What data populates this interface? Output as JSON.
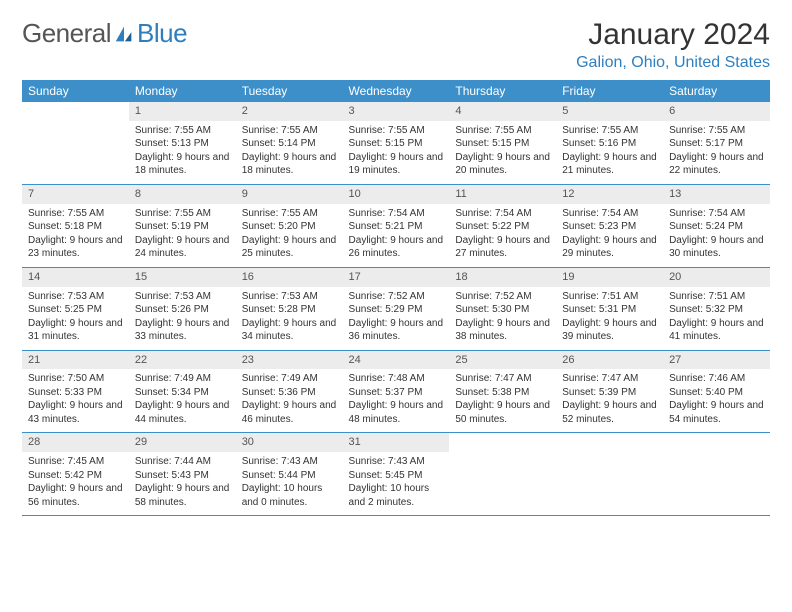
{
  "brand": {
    "text1": "General",
    "text2": "Blue"
  },
  "title": "January 2024",
  "location": "Galion, Ohio, United States",
  "colors": {
    "header_bg": "#3d8fc9",
    "header_text": "#ffffff",
    "accent": "#2f7fbf",
    "daynum_bg": "#ececec",
    "border": "#3d8fc9",
    "body_text": "#333333",
    "page_bg": "#ffffff"
  },
  "day_names": [
    "Sunday",
    "Monday",
    "Tuesday",
    "Wednesday",
    "Thursday",
    "Friday",
    "Saturday"
  ],
  "weeks": [
    [
      {
        "n": "",
        "sr": "",
        "ss": "",
        "dl": ""
      },
      {
        "n": "1",
        "sr": "Sunrise: 7:55 AM",
        "ss": "Sunset: 5:13 PM",
        "dl": "Daylight: 9 hours and 18 minutes."
      },
      {
        "n": "2",
        "sr": "Sunrise: 7:55 AM",
        "ss": "Sunset: 5:14 PM",
        "dl": "Daylight: 9 hours and 18 minutes."
      },
      {
        "n": "3",
        "sr": "Sunrise: 7:55 AM",
        "ss": "Sunset: 5:15 PM",
        "dl": "Daylight: 9 hours and 19 minutes."
      },
      {
        "n": "4",
        "sr": "Sunrise: 7:55 AM",
        "ss": "Sunset: 5:15 PM",
        "dl": "Daylight: 9 hours and 20 minutes."
      },
      {
        "n": "5",
        "sr": "Sunrise: 7:55 AM",
        "ss": "Sunset: 5:16 PM",
        "dl": "Daylight: 9 hours and 21 minutes."
      },
      {
        "n": "6",
        "sr": "Sunrise: 7:55 AM",
        "ss": "Sunset: 5:17 PM",
        "dl": "Daylight: 9 hours and 22 minutes."
      }
    ],
    [
      {
        "n": "7",
        "sr": "Sunrise: 7:55 AM",
        "ss": "Sunset: 5:18 PM",
        "dl": "Daylight: 9 hours and 23 minutes."
      },
      {
        "n": "8",
        "sr": "Sunrise: 7:55 AM",
        "ss": "Sunset: 5:19 PM",
        "dl": "Daylight: 9 hours and 24 minutes."
      },
      {
        "n": "9",
        "sr": "Sunrise: 7:55 AM",
        "ss": "Sunset: 5:20 PM",
        "dl": "Daylight: 9 hours and 25 minutes."
      },
      {
        "n": "10",
        "sr": "Sunrise: 7:54 AM",
        "ss": "Sunset: 5:21 PM",
        "dl": "Daylight: 9 hours and 26 minutes."
      },
      {
        "n": "11",
        "sr": "Sunrise: 7:54 AM",
        "ss": "Sunset: 5:22 PM",
        "dl": "Daylight: 9 hours and 27 minutes."
      },
      {
        "n": "12",
        "sr": "Sunrise: 7:54 AM",
        "ss": "Sunset: 5:23 PM",
        "dl": "Daylight: 9 hours and 29 minutes."
      },
      {
        "n": "13",
        "sr": "Sunrise: 7:54 AM",
        "ss": "Sunset: 5:24 PM",
        "dl": "Daylight: 9 hours and 30 minutes."
      }
    ],
    [
      {
        "n": "14",
        "sr": "Sunrise: 7:53 AM",
        "ss": "Sunset: 5:25 PM",
        "dl": "Daylight: 9 hours and 31 minutes."
      },
      {
        "n": "15",
        "sr": "Sunrise: 7:53 AM",
        "ss": "Sunset: 5:26 PM",
        "dl": "Daylight: 9 hours and 33 minutes."
      },
      {
        "n": "16",
        "sr": "Sunrise: 7:53 AM",
        "ss": "Sunset: 5:28 PM",
        "dl": "Daylight: 9 hours and 34 minutes."
      },
      {
        "n": "17",
        "sr": "Sunrise: 7:52 AM",
        "ss": "Sunset: 5:29 PM",
        "dl": "Daylight: 9 hours and 36 minutes."
      },
      {
        "n": "18",
        "sr": "Sunrise: 7:52 AM",
        "ss": "Sunset: 5:30 PM",
        "dl": "Daylight: 9 hours and 38 minutes."
      },
      {
        "n": "19",
        "sr": "Sunrise: 7:51 AM",
        "ss": "Sunset: 5:31 PM",
        "dl": "Daylight: 9 hours and 39 minutes."
      },
      {
        "n": "20",
        "sr": "Sunrise: 7:51 AM",
        "ss": "Sunset: 5:32 PM",
        "dl": "Daylight: 9 hours and 41 minutes."
      }
    ],
    [
      {
        "n": "21",
        "sr": "Sunrise: 7:50 AM",
        "ss": "Sunset: 5:33 PM",
        "dl": "Daylight: 9 hours and 43 minutes."
      },
      {
        "n": "22",
        "sr": "Sunrise: 7:49 AM",
        "ss": "Sunset: 5:34 PM",
        "dl": "Daylight: 9 hours and 44 minutes."
      },
      {
        "n": "23",
        "sr": "Sunrise: 7:49 AM",
        "ss": "Sunset: 5:36 PM",
        "dl": "Daylight: 9 hours and 46 minutes."
      },
      {
        "n": "24",
        "sr": "Sunrise: 7:48 AM",
        "ss": "Sunset: 5:37 PM",
        "dl": "Daylight: 9 hours and 48 minutes."
      },
      {
        "n": "25",
        "sr": "Sunrise: 7:47 AM",
        "ss": "Sunset: 5:38 PM",
        "dl": "Daylight: 9 hours and 50 minutes."
      },
      {
        "n": "26",
        "sr": "Sunrise: 7:47 AM",
        "ss": "Sunset: 5:39 PM",
        "dl": "Daylight: 9 hours and 52 minutes."
      },
      {
        "n": "27",
        "sr": "Sunrise: 7:46 AM",
        "ss": "Sunset: 5:40 PM",
        "dl": "Daylight: 9 hours and 54 minutes."
      }
    ],
    [
      {
        "n": "28",
        "sr": "Sunrise: 7:45 AM",
        "ss": "Sunset: 5:42 PM",
        "dl": "Daylight: 9 hours and 56 minutes."
      },
      {
        "n": "29",
        "sr": "Sunrise: 7:44 AM",
        "ss": "Sunset: 5:43 PM",
        "dl": "Daylight: 9 hours and 58 minutes."
      },
      {
        "n": "30",
        "sr": "Sunrise: 7:43 AM",
        "ss": "Sunset: 5:44 PM",
        "dl": "Daylight: 10 hours and 0 minutes."
      },
      {
        "n": "31",
        "sr": "Sunrise: 7:43 AM",
        "ss": "Sunset: 5:45 PM",
        "dl": "Daylight: 10 hours and 2 minutes."
      },
      {
        "n": "",
        "sr": "",
        "ss": "",
        "dl": ""
      },
      {
        "n": "",
        "sr": "",
        "ss": "",
        "dl": ""
      },
      {
        "n": "",
        "sr": "",
        "ss": "",
        "dl": ""
      }
    ]
  ]
}
